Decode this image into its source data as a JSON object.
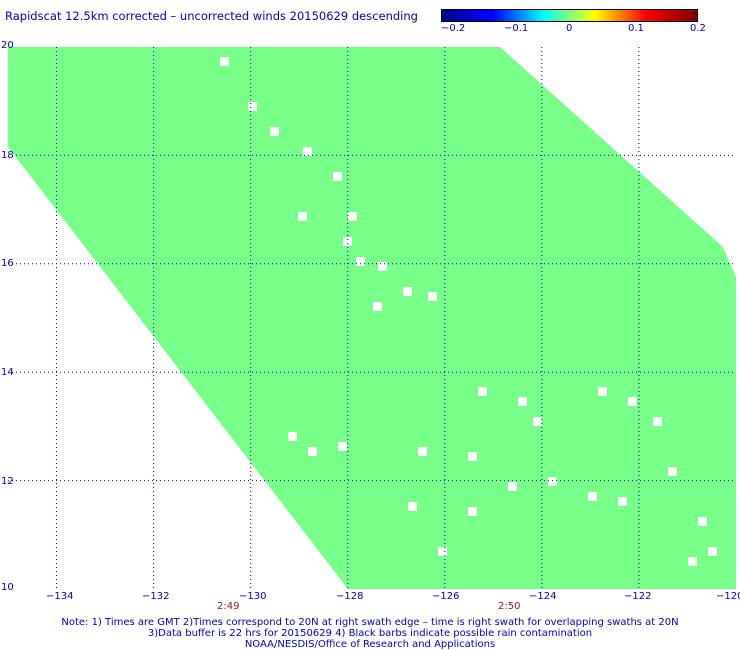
{
  "title": "Rapidscat 12.5km corrected – uncorrected winds 20150629 descending",
  "colorbar": {
    "ticks": [
      "−0.2",
      "−0.1",
      "0",
      "0.1",
      "0.2"
    ],
    "colors": [
      "#00008f",
      "#0000ff",
      "#00ffff",
      "#ffff00",
      "#ff0000",
      "#800000"
    ]
  },
  "map": {
    "lon_ticks": [
      "−134",
      "−132",
      "−130",
      "−128",
      "−126",
      "−124",
      "−122",
      "−120"
    ],
    "lat_ticks": [
      "20",
      "18",
      "16",
      "14",
      "12",
      "10"
    ],
    "lon_range": [
      -135,
      -120
    ],
    "lat_range": [
      10,
      20
    ],
    "swath_color": "#77ff88",
    "grid_color": "#0000cc",
    "time_labels": [
      {
        "text": "2:49",
        "lon": -130.5
      },
      {
        "text": "2:50",
        "lon": -124.8
      }
    ]
  },
  "notes": [
    "Note: 1) Times are GMT 2)Times correspond to 20N at right swath edge – time is right swath for overlapping swaths at 20N",
    "3)Data buffer is 22 hrs for 20150629 4) Black barbs indicate possible rain contamination",
    "NOAA/NESDIS/Office of Research and Applications"
  ]
}
